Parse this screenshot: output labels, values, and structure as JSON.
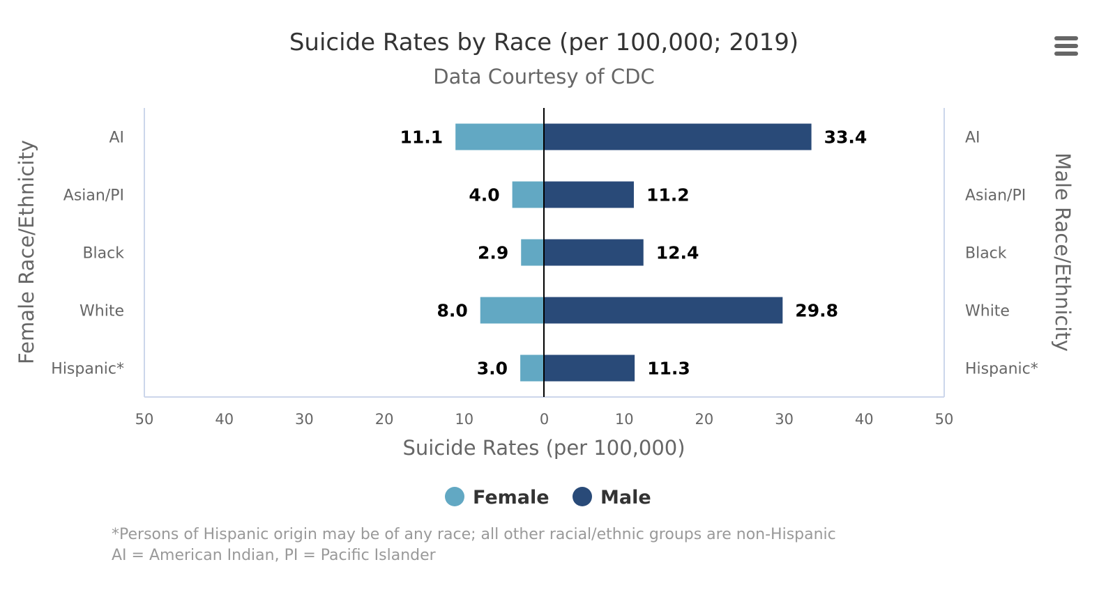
{
  "chart_data": {
    "type": "bar",
    "orientation": "horizontal",
    "layout": "diverging",
    "title": "Suicide Rates by Race (per 100,000; 2019)",
    "subtitle": "Data Courtesy of CDC",
    "xlabel": "Suicide Rates (per 100,000)",
    "ylabel_left": "Female Race/Ethnicity",
    "ylabel_right": "Male Race/Ethnicity",
    "categories": [
      "AI",
      "Asian/PI",
      "Black",
      "White",
      "Hispanic*"
    ],
    "series": [
      {
        "name": "Female",
        "color": "#62A8C3",
        "values": [
          11.1,
          4.0,
          2.9,
          8.0,
          3.0
        ]
      },
      {
        "name": "Male",
        "color": "#294A78",
        "values": [
          33.4,
          11.2,
          12.4,
          29.8,
          11.3
        ]
      }
    ],
    "xlim": [
      -50,
      50
    ],
    "x_tick_labels": [
      "50",
      "40",
      "30",
      "20",
      "10",
      "0",
      "10",
      "20",
      "30",
      "40",
      "50"
    ],
    "data_labels": true,
    "grid": false,
    "legend": "bottom-center"
  },
  "footnotes": [
    "*Persons of Hispanic origin may be of any race; all other racial/ethnic groups are non-Hispanic",
    "AI = American Indian, PI = Pacific Islander"
  ],
  "icons": {
    "menu": "hamburger-menu-icon"
  }
}
